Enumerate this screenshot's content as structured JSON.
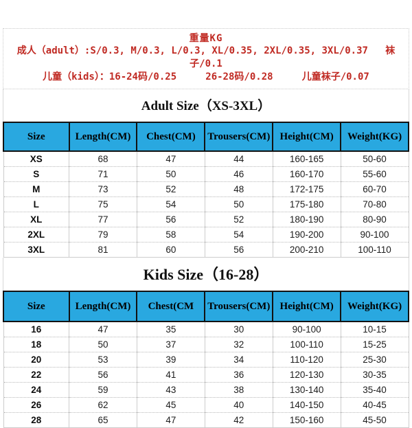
{
  "colors": {
    "header_blue": "#29a8e0",
    "note_red": "#c02a23",
    "border_black": "#121212",
    "border_light": "#cccccc"
  },
  "weight_note": {
    "title": "重量KG",
    "adult_line": "成人（adult）:S/0.3, M/0.3, L/0.3, XL/0.35, 2XL/0.35, 3XL/0.37   袜子/0.1",
    "kids_line": "儿童（kids）：16-24码/0.25     26-28码/0.28     儿童袜子/0.07"
  },
  "adult_table": {
    "title": "Adult Size（XS-3XL）",
    "headers": [
      "Size",
      "Length(CM)",
      "Chest(CM)",
      "Trousers(CM)",
      "Height(CM)",
      "Weight(KG)"
    ],
    "rows": [
      [
        "XS",
        "68",
        "47",
        "44",
        "160-165",
        "50-60"
      ],
      [
        "S",
        "71",
        "50",
        "46",
        "160-170",
        "55-60"
      ],
      [
        "M",
        "73",
        "52",
        "48",
        "172-175",
        "60-70"
      ],
      [
        "L",
        "75",
        "54",
        "50",
        "175-180",
        "70-80"
      ],
      [
        "XL",
        "77",
        "56",
        "52",
        "180-190",
        "80-90"
      ],
      [
        "2XL",
        "79",
        "58",
        "54",
        "190-200",
        "90-100"
      ],
      [
        "3XL",
        "81",
        "60",
        "56",
        "200-210",
        "100-110"
      ]
    ]
  },
  "kids_table": {
    "title": "Kids Size（16-28）",
    "headers": [
      "Size",
      "Length(CM)",
      "Chest(CM",
      "Trousers(CM)",
      "Height(CM)",
      "Weight(KG)"
    ],
    "rows": [
      [
        "16",
        "47",
        "35",
        "30",
        "90-100",
        "10-15"
      ],
      [
        "18",
        "50",
        "37",
        "32",
        "100-110",
        "15-25"
      ],
      [
        "20",
        "53",
        "39",
        "34",
        "110-120",
        "25-30"
      ],
      [
        "22",
        "56",
        "41",
        "36",
        "120-130",
        "30-35"
      ],
      [
        "24",
        "59",
        "43",
        "38",
        "130-140",
        "35-40"
      ],
      [
        "26",
        "62",
        "45",
        "40",
        "140-150",
        "40-45"
      ],
      [
        "28",
        "65",
        "47",
        "42",
        "150-160",
        "45-50"
      ]
    ]
  }
}
